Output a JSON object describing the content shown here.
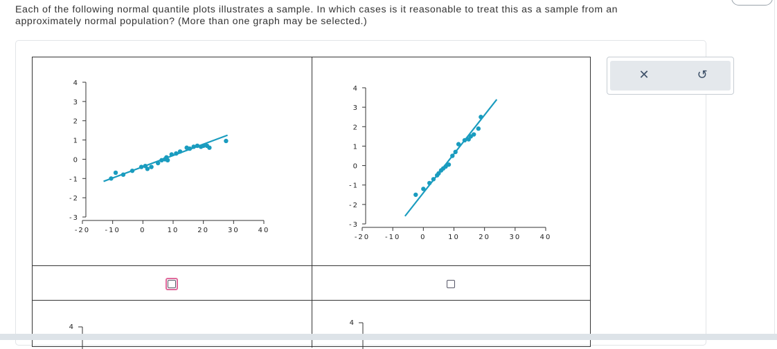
{
  "question": "Each of the following normal quantile plots illustrates a sample. In which cases is it reasonable to treat this as a sample from an approximately normal population? (More than one graph may be selected.)",
  "tools": {
    "clear_symbol": "✕",
    "undo_symbol": "↺"
  },
  "plots": [
    {
      "id": "A",
      "x_ticks": [
        "-20",
        "-10",
        "0",
        "10",
        "20",
        "30",
        "40"
      ],
      "y_ticks": [
        "4",
        "3",
        "2",
        "1",
        "0",
        "-1",
        "-2",
        "-3"
      ],
      "color": "#1a9cbf",
      "chart_data": {
        "type": "scatter",
        "xlim": [
          -20,
          40
        ],
        "ylim": [
          -3,
          4
        ],
        "points": [
          [
            -10.5,
            -1.0
          ],
          [
            -9,
            -0.7
          ],
          [
            -6.5,
            -0.8
          ],
          [
            -3.5,
            -0.6
          ],
          [
            -0.5,
            -0.4
          ],
          [
            0.8,
            -0.35
          ],
          [
            1.5,
            -0.5
          ],
          [
            2.8,
            -0.4
          ],
          [
            5,
            -0.2
          ],
          [
            6.2,
            -0.05
          ],
          [
            7.3,
            0
          ],
          [
            7.8,
            0.1
          ],
          [
            8.2,
            -0.05
          ],
          [
            9.5,
            0.25
          ],
          [
            11,
            0.3
          ],
          [
            12.3,
            0.4
          ],
          [
            14.5,
            0.6
          ],
          [
            15.5,
            0.55
          ],
          [
            16.8,
            0.65
          ],
          [
            18,
            0.7
          ],
          [
            19.2,
            0.65
          ],
          [
            20,
            0.7
          ],
          [
            21.2,
            0.7
          ],
          [
            22,
            0.6
          ],
          [
            27.5,
            0.95
          ]
        ],
        "fit_line": [
          [
            -13,
            -1.15
          ],
          [
            28,
            1.25
          ]
        ]
      },
      "selected_focus": true
    },
    {
      "id": "B",
      "x_ticks": [
        "-20",
        "-10",
        "0",
        "10",
        "20",
        "30",
        "40"
      ],
      "y_ticks": [
        "4",
        "3",
        "2",
        "1",
        "0",
        "-1",
        "-2",
        "-3"
      ],
      "color": "#1a9cbf",
      "chart_data": {
        "type": "scatter",
        "xlim": [
          -20,
          40
        ],
        "ylim": [
          -3,
          4
        ],
        "points": [
          [
            -2.5,
            -1.5
          ],
          [
            0,
            -1.2
          ],
          [
            2,
            -0.9
          ],
          [
            3.3,
            -0.7
          ],
          [
            4.5,
            -0.5
          ],
          [
            5,
            -0.4
          ],
          [
            5.8,
            -0.25
          ],
          [
            6.5,
            -0.15
          ],
          [
            7.3,
            -0.05
          ],
          [
            8.3,
            0.05
          ],
          [
            9.5,
            0.5
          ],
          [
            10.5,
            0.7
          ],
          [
            11.5,
            1.1
          ],
          [
            13.5,
            1.3
          ],
          [
            15.5,
            1.5
          ],
          [
            16.5,
            1.6
          ],
          [
            18,
            1.9
          ],
          [
            18.8,
            2.5
          ],
          [
            14.8,
            1.35
          ]
        ],
        "fit_line": [
          [
            -6,
            -2.6
          ],
          [
            24,
            3.4
          ]
        ]
      },
      "selected_focus": false
    }
  ],
  "third_row_y_top": "4",
  "fourth_row_y_top": "4"
}
